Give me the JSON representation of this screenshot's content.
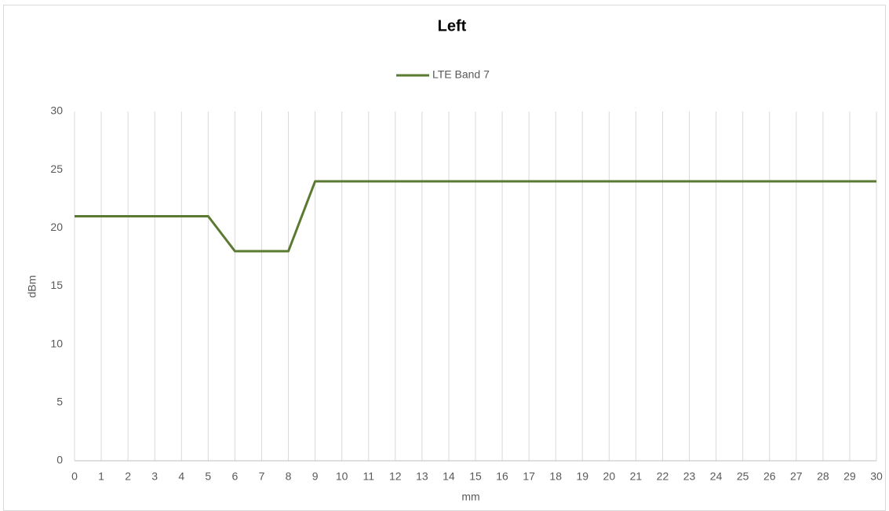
{
  "chart_data": {
    "type": "line",
    "title": "Left",
    "x_label": "mm",
    "y_label": "dBm",
    "x": [
      0,
      1,
      2,
      3,
      4,
      5,
      6,
      7,
      8,
      9,
      10,
      11,
      12,
      13,
      14,
      15,
      16,
      17,
      18,
      19,
      20,
      21,
      22,
      23,
      24,
      25,
      26,
      27,
      28,
      29,
      30
    ],
    "series": [
      {
        "name": "LTE Band 7",
        "color": "#5b7a31",
        "values": [
          21,
          21,
          21,
          21,
          21,
          21,
          18,
          18,
          18,
          24,
          24,
          24,
          24,
          24,
          24,
          24,
          24,
          24,
          24,
          24,
          24,
          24,
          24,
          24,
          24,
          24,
          24,
          24,
          24,
          24,
          24
        ]
      }
    ],
    "xlim": [
      0,
      30
    ],
    "xticks": [
      0,
      1,
      2,
      3,
      4,
      5,
      6,
      7,
      8,
      9,
      10,
      11,
      12,
      13,
      14,
      15,
      16,
      17,
      18,
      19,
      20,
      21,
      22,
      23,
      24,
      25,
      26,
      27,
      28,
      29,
      30
    ],
    "ylim": [
      0,
      30
    ],
    "yticks": [
      0,
      5,
      10,
      15,
      20,
      25,
      30
    ],
    "grid": "x",
    "legend": "top"
  }
}
